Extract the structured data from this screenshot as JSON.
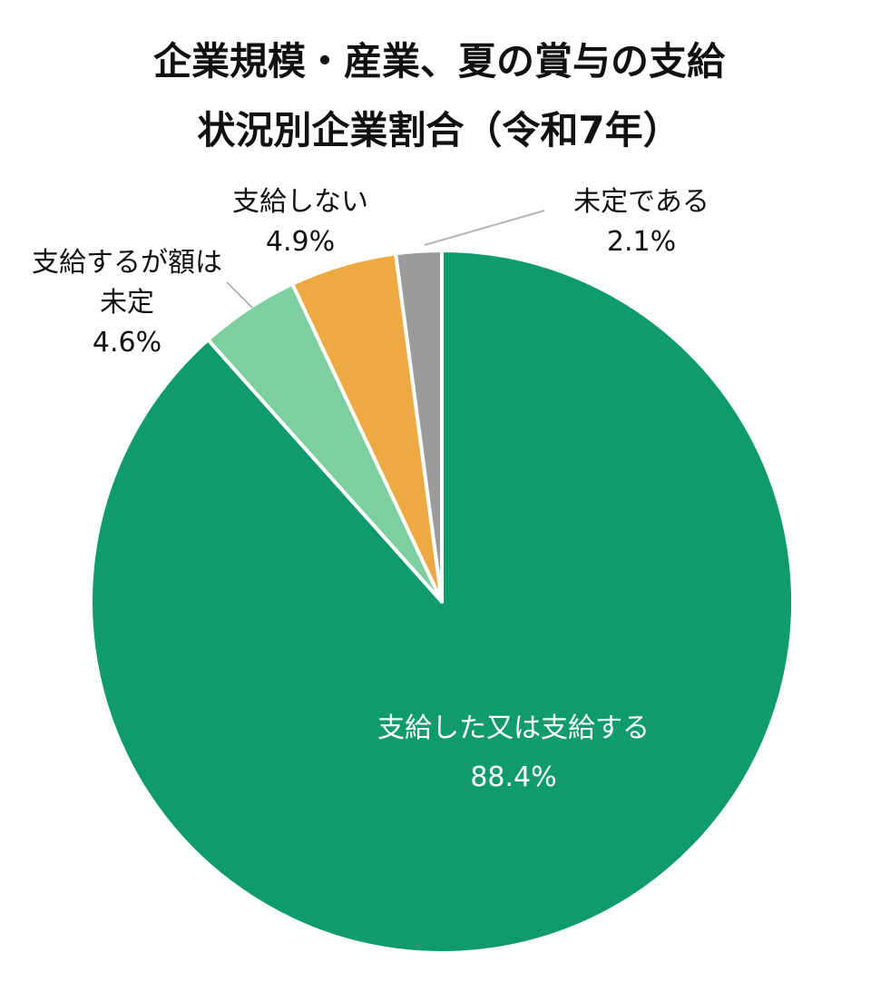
{
  "chart_data": {
    "type": "pie",
    "title": [
      "企業規模・産業、夏の賞与の支給",
      "状況別企業割合（令和7年）"
    ],
    "slices": [
      {
        "label": [
          "支給した又は支給する"
        ],
        "value_label": "88.4%",
        "value": 88.4,
        "color": "#0f9b6b"
      },
      {
        "label": [
          "支給するが額は",
          "未定"
        ],
        "value_label": "4.6%",
        "value": 4.6,
        "color": "#7dd09d"
      },
      {
        "label": [
          "支給しない"
        ],
        "value_label": "4.9%",
        "value": 4.9,
        "color": "#eeaa42"
      },
      {
        "label": [
          "未定である"
        ],
        "value_label": "2.1%",
        "value": 2.1,
        "color": "#9b9b9b"
      }
    ],
    "start_angle": "12 o'clock",
    "direction": "clockwise",
    "legend": "none"
  }
}
